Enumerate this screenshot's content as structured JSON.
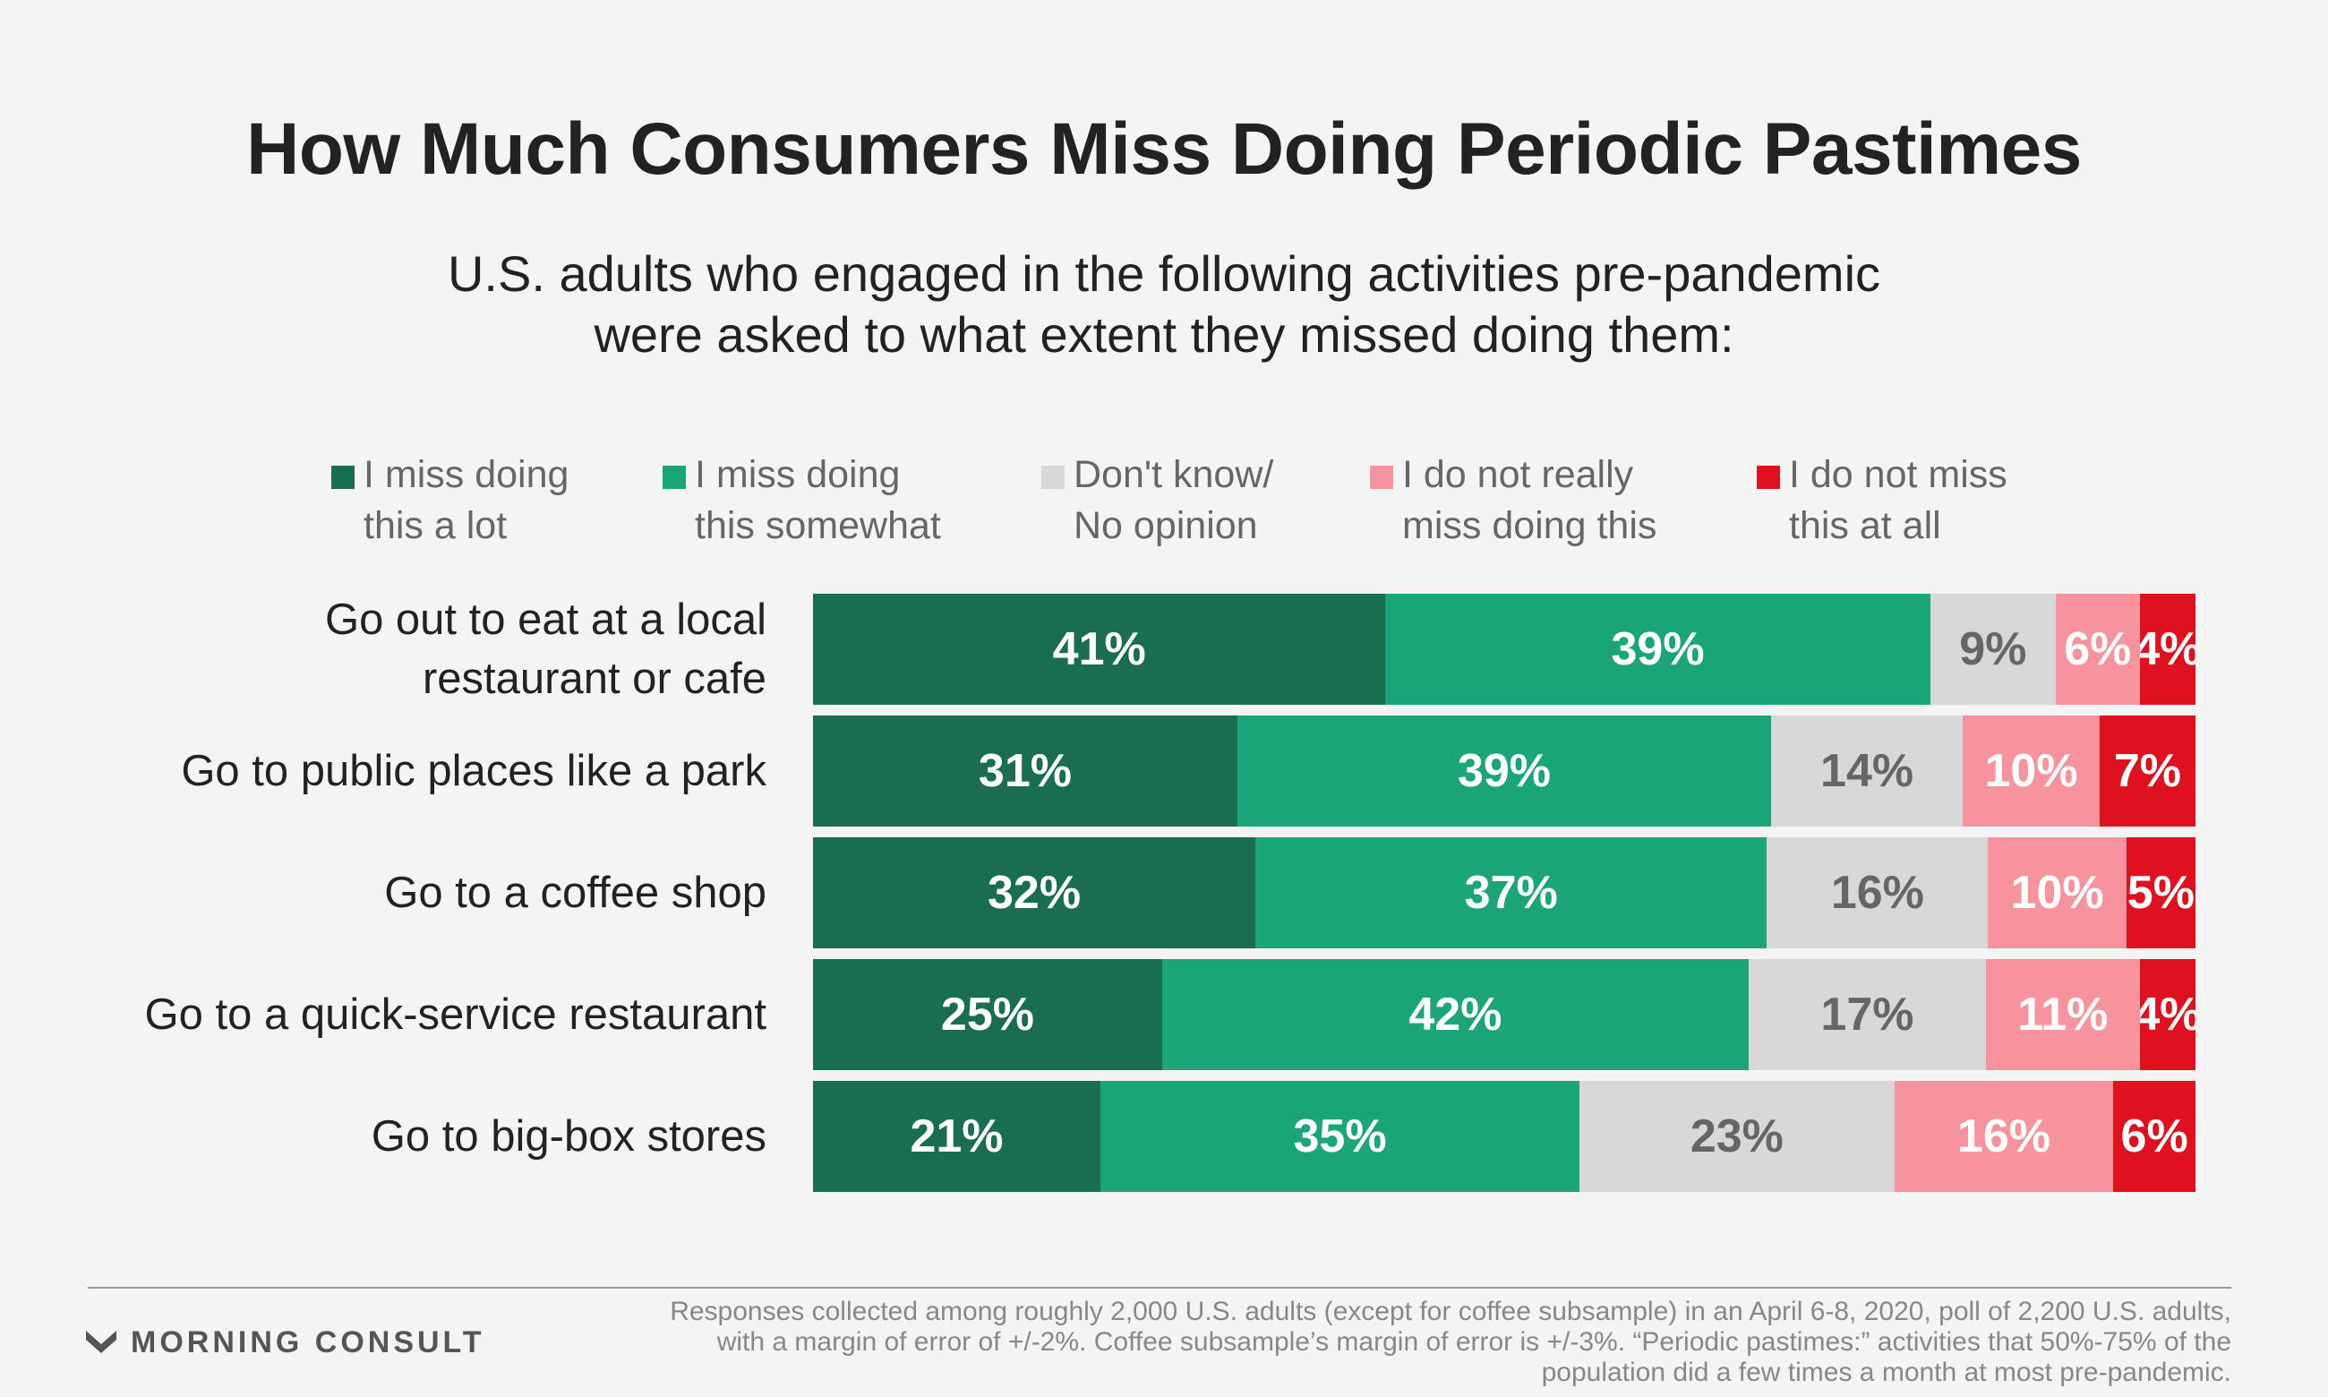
{
  "title": "How Much Consumers Miss Doing Periodic Pastimes",
  "subtitle": "U.S. adults who engaged in the following activities pre-pandemic\nwere asked to what extent they missed doing them:",
  "legend": [
    {
      "label": "I miss doing\nthis a lot",
      "color": "#1a6e50"
    },
    {
      "label": "I miss doing\nthis somewhat",
      "color": "#1aa67a"
    },
    {
      "label": "Don't know/\nNo opinion",
      "color": "#d8d8d8"
    },
    {
      "label": "I do not really\nmiss doing this",
      "color": "#f7939d"
    },
    {
      "label": "I do not miss\nthis at all",
      "color": "#e0111e"
    }
  ],
  "label_colors": [
    "#ffffff",
    "#ffffff",
    "#666666",
    "#ffffff",
    "#ffffff"
  ],
  "chart_data": {
    "type": "bar",
    "orientation": "horizontal",
    "stacked": true,
    "categories": [
      "Go out to eat at a local restaurant or cafe",
      "Go to public places like a park",
      "Go to a coffee shop",
      "Go to a quick-service restaurant",
      "Go to big-box stores"
    ],
    "series": [
      {
        "name": "I miss doing this a lot",
        "values": [
          41,
          31,
          32,
          25,
          21
        ]
      },
      {
        "name": "I miss doing this somewhat",
        "values": [
          39,
          39,
          37,
          42,
          35
        ]
      },
      {
        "name": "Don't know/ No opinion",
        "values": [
          9,
          14,
          16,
          17,
          23
        ]
      },
      {
        "name": "I do not really miss doing this",
        "values": [
          6,
          10,
          10,
          11,
          16
        ]
      },
      {
        "name": "I do not miss this at all",
        "values": [
          4,
          7,
          5,
          4,
          6
        ]
      }
    ],
    "value_labels": [
      [
        "41%",
        "39%",
        "9%",
        "6%",
        "4%"
      ],
      [
        "31%",
        "39%",
        "14%",
        "10%",
        "7%"
      ],
      [
        "32%",
        "37%",
        "16%",
        "10%",
        "5%"
      ],
      [
        "25%",
        "42%",
        "17%",
        "11%",
        "4%"
      ],
      [
        "21%",
        "35%",
        "23%",
        "16%",
        "6%"
      ]
    ],
    "legend_position": "top"
  },
  "footer": {
    "brand": "MORNING CONSULT",
    "note": "Responses collected among roughly 2,000 U.S. adults (except for coffee subsample) in an April 6-8, 2020, poll of 2,200 U.S. adults, with a margin of error of +/-2%. Coffee subsample’s margin of error is +/-3%. “Periodic pastimes:” activities that 50%-75% of the population did a few times a month at most pre-pandemic."
  }
}
